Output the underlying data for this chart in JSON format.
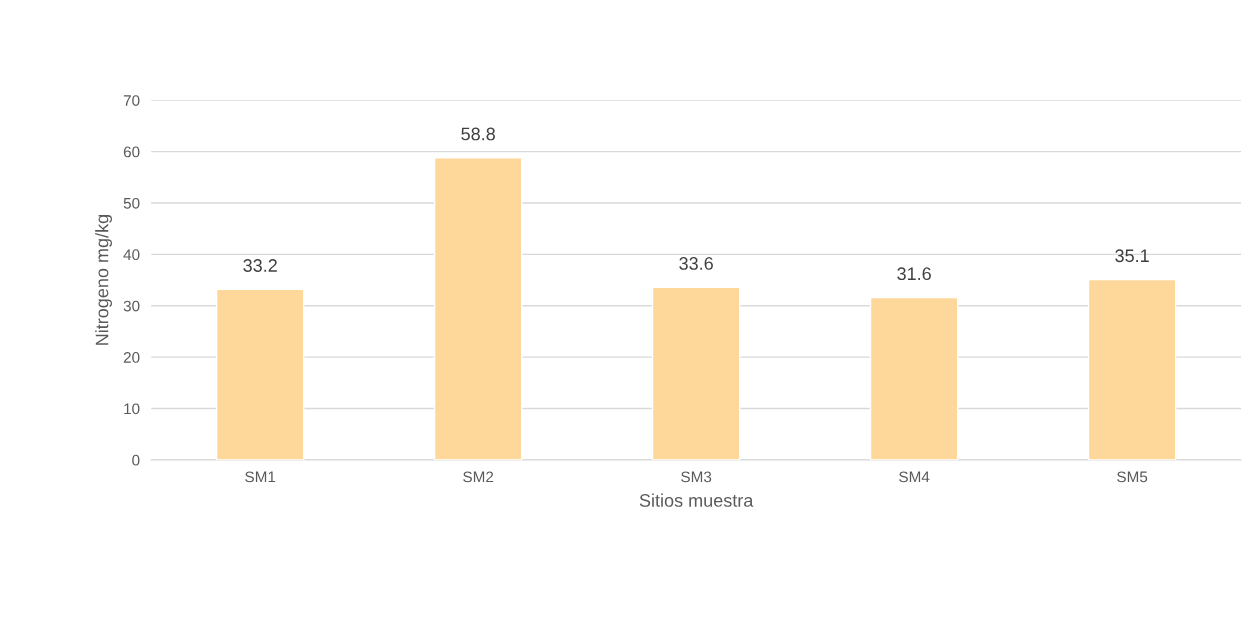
{
  "chart_data": {
    "type": "bar",
    "xlabel": "Sitios muestra",
    "ylabel": "Nitrogeno mg/kg",
    "categories": [
      "SM1",
      "SM2",
      "SM3",
      "SM4",
      "SM5"
    ],
    "values": [
      33.2,
      58.8,
      33.6,
      31.6,
      35.1
    ],
    "color": "#fdd89a",
    "ylim": [
      0,
      70
    ],
    "yticks": [
      0,
      10,
      20,
      30,
      40,
      50,
      60,
      70
    ],
    "grid": "y",
    "data_labels": true
  }
}
